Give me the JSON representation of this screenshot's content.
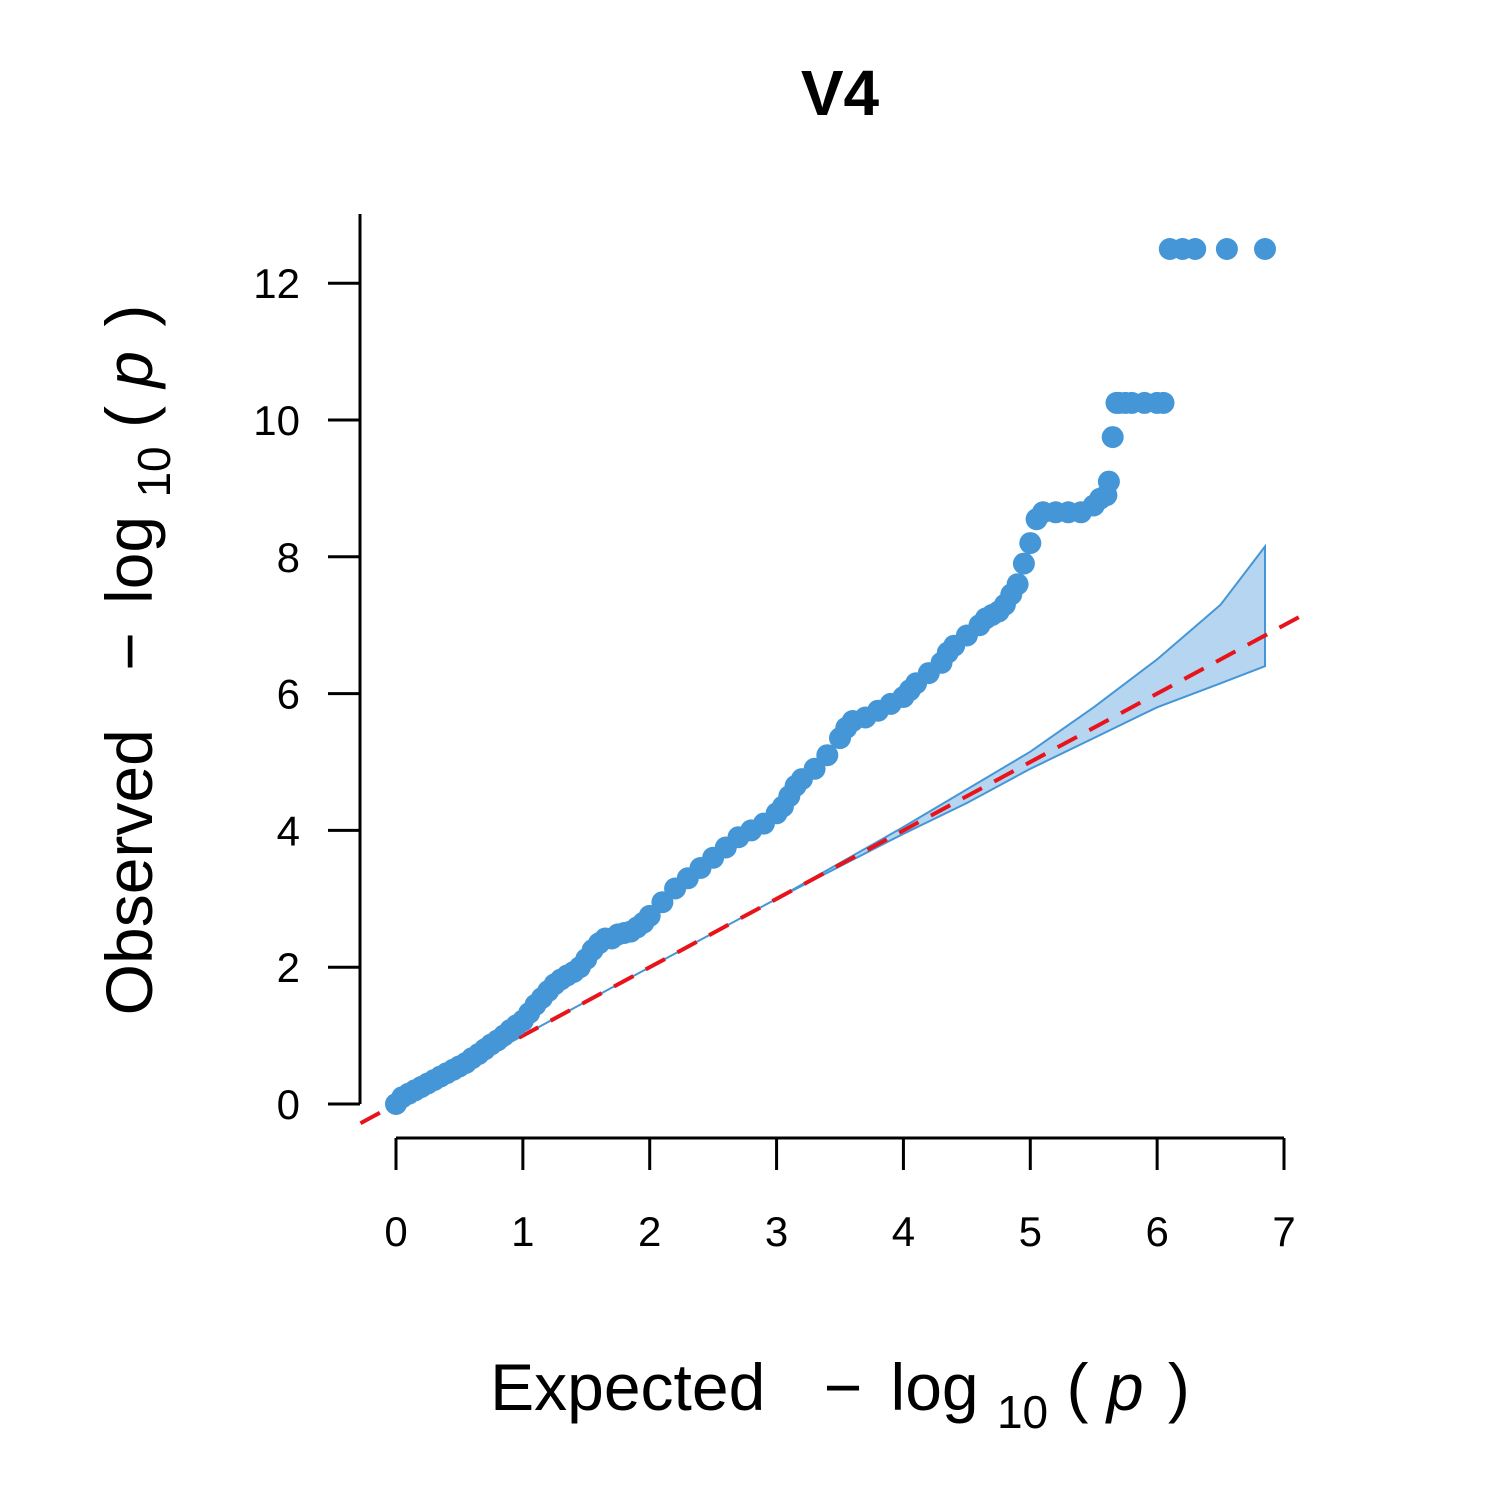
{
  "chart_data": {
    "type": "scatter",
    "title": "V4",
    "xlabel": {
      "prefix": "Expected",
      "expr_minus": "−",
      "expr_log": "log",
      "expr_sub": "10",
      "expr_open": "(",
      "expr_var": "p",
      "expr_close": ")"
    },
    "ylabel": {
      "prefix": "Observed",
      "expr_minus": "−",
      "expr_log": "log",
      "expr_sub": "10",
      "expr_open": "(",
      "expr_var": "p",
      "expr_close": ")"
    },
    "xlim": [
      0,
      7
    ],
    "ylim": [
      0,
      13
    ],
    "x_ticks": [
      0,
      1,
      2,
      3,
      4,
      5,
      6,
      7
    ],
    "x_tick_labels": [
      "0",
      "1",
      "2",
      "3",
      "4",
      "5",
      "6",
      "7"
    ],
    "y_ticks": [
      0,
      2,
      4,
      6,
      8,
      10,
      12
    ],
    "y_tick_labels": [
      "0",
      "2",
      "4",
      "6",
      "8",
      "10",
      "12"
    ],
    "grid": false,
    "colors": {
      "points": "#4596d6",
      "band_fill": "#b6d5f0",
      "band_stroke": "#4596d6",
      "reference_line": "#e8141b"
    },
    "reference_line": {
      "slope": 1,
      "intercept": 0,
      "style": "dashed"
    },
    "confidence_band": {
      "x": [
        0.0,
        1.0,
        2.0,
        3.0,
        4.0,
        4.5,
        5.0,
        5.5,
        6.0,
        6.5,
        6.85
      ],
      "upper": [
        0.0,
        1.0,
        2.0,
        3.0,
        4.05,
        4.6,
        5.15,
        5.8,
        6.5,
        7.3,
        8.15
      ],
      "lower": [
        0.0,
        1.0,
        2.0,
        3.0,
        3.95,
        4.4,
        4.9,
        5.35,
        5.8,
        6.15,
        6.4
      ]
    },
    "series": [
      {
        "x": [
          0.0,
          0.05,
          0.1,
          0.15,
          0.2,
          0.25,
          0.3,
          0.35,
          0.4,
          0.45,
          0.5,
          0.55,
          0.6,
          0.65,
          0.7,
          0.75,
          0.8,
          0.85,
          0.9,
          0.95,
          1.0,
          1.05,
          1.1,
          1.15,
          1.2,
          1.25,
          1.3,
          1.35,
          1.4,
          1.45,
          1.5,
          1.55,
          1.6,
          1.65,
          1.7,
          1.75,
          1.8,
          1.85,
          1.9,
          1.95,
          2.0,
          2.1,
          2.2,
          2.3,
          2.4,
          2.5,
          2.6,
          2.7,
          2.8,
          2.9,
          3.0,
          3.05,
          3.1,
          3.15,
          3.2,
          3.3,
          3.4,
          3.5,
          3.55,
          3.6,
          3.7,
          3.8,
          3.9,
          4.0,
          4.05,
          4.1,
          4.2,
          4.3,
          4.35,
          4.4,
          4.5,
          4.6,
          4.65,
          4.7,
          4.75,
          4.8,
          4.85,
          4.9,
          4.95,
          5.0,
          5.05,
          5.1,
          5.2,
          5.3,
          5.4,
          5.5,
          5.55,
          5.6,
          5.62,
          5.65,
          5.68,
          5.7,
          5.75,
          5.8,
          5.9,
          6.0,
          6.05,
          6.1,
          6.2,
          6.3,
          6.55,
          6.85
        ],
        "y": [
          0.0,
          0.1,
          0.15,
          0.2,
          0.25,
          0.3,
          0.35,
          0.4,
          0.45,
          0.5,
          0.55,
          0.6,
          0.67,
          0.73,
          0.8,
          0.87,
          0.93,
          1.0,
          1.08,
          1.15,
          1.22,
          1.33,
          1.45,
          1.55,
          1.65,
          1.75,
          1.82,
          1.88,
          1.93,
          2.0,
          2.12,
          2.25,
          2.35,
          2.42,
          2.42,
          2.48,
          2.5,
          2.52,
          2.58,
          2.65,
          2.75,
          2.95,
          3.15,
          3.3,
          3.45,
          3.6,
          3.75,
          3.9,
          4.0,
          4.1,
          4.25,
          4.35,
          4.5,
          4.65,
          4.75,
          4.9,
          5.1,
          5.35,
          5.5,
          5.6,
          5.65,
          5.75,
          5.85,
          5.95,
          6.05,
          6.15,
          6.3,
          6.45,
          6.6,
          6.7,
          6.85,
          7.0,
          7.1,
          7.15,
          7.2,
          7.3,
          7.45,
          7.6,
          7.9,
          8.2,
          8.55,
          8.65,
          8.65,
          8.65,
          8.65,
          8.75,
          8.85,
          8.9,
          9.1,
          9.75,
          10.25,
          10.25,
          10.25,
          10.25,
          10.25,
          10.25,
          10.25,
          12.5,
          12.5,
          12.5,
          12.5,
          12.5
        ]
      }
    ]
  }
}
